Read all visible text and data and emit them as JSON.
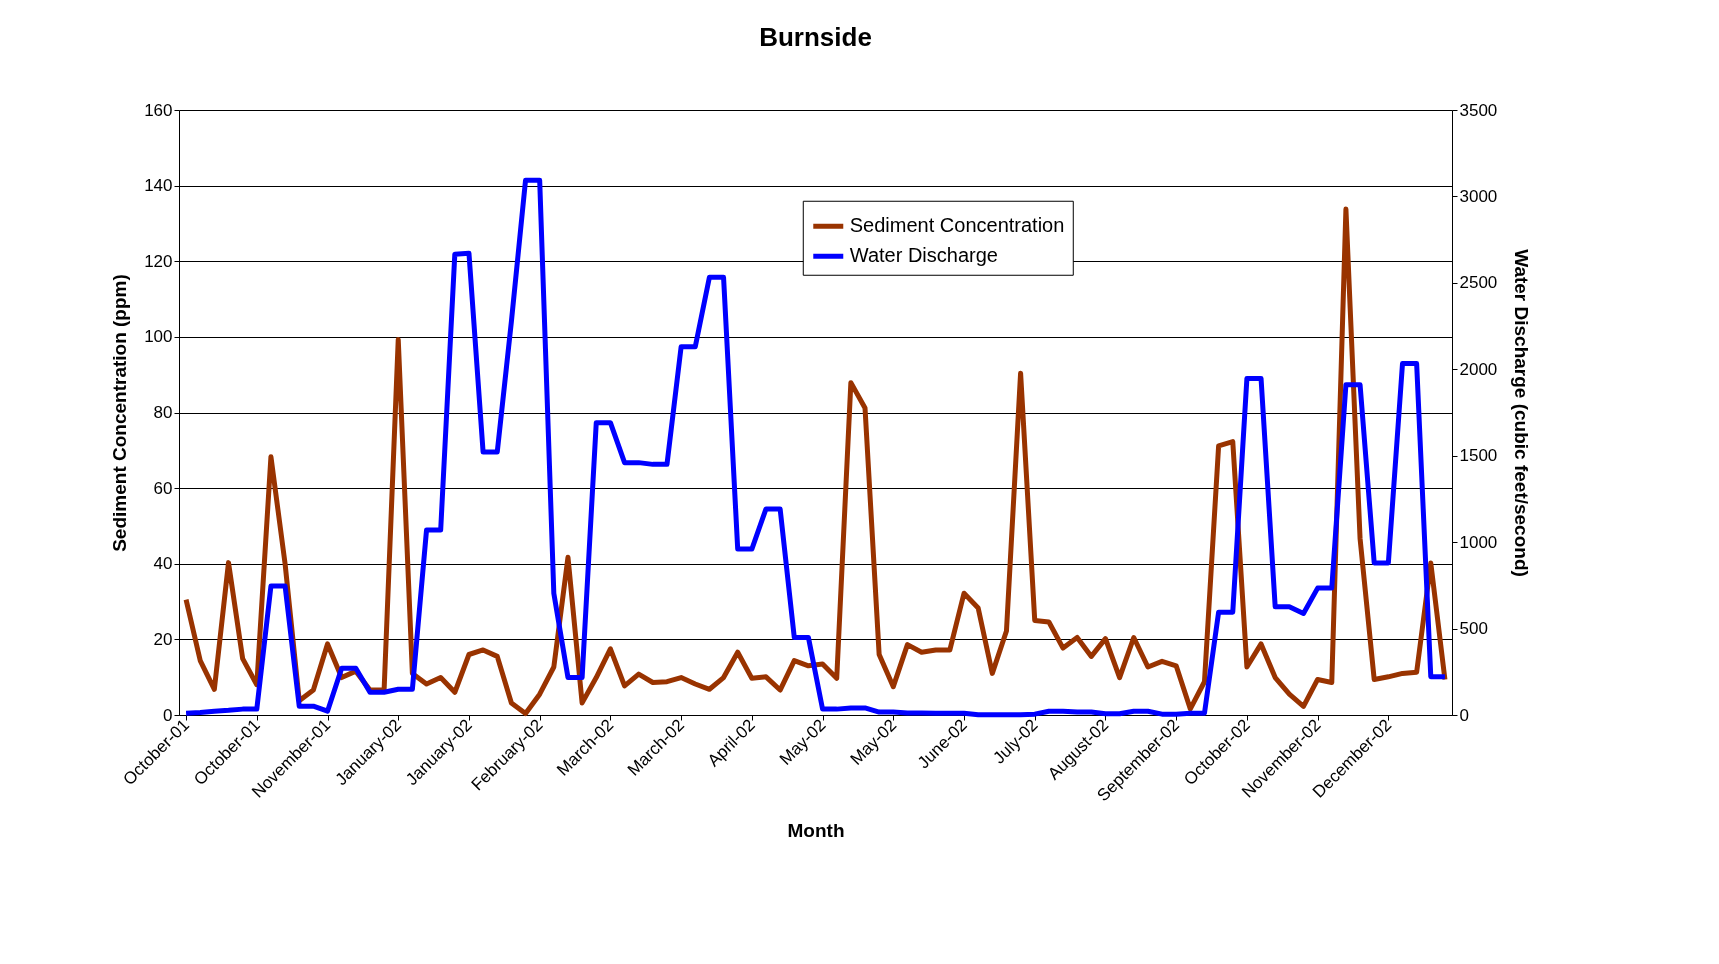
{
  "chart_data": {
    "type": "line",
    "title": "Burnside",
    "xlabel": "Month",
    "ylabel": "Sediment Concentration (ppm)",
    "y2label": "Water Discharge (cubic feet/second)",
    "categories": [
      "October-01",
      null,
      null,
      null,
      null,
      "October-01",
      null,
      null,
      null,
      null,
      "November-01",
      null,
      null,
      null,
      null,
      "January-02",
      null,
      null,
      null,
      null,
      "January-02",
      null,
      null,
      null,
      null,
      "February-02",
      null,
      null,
      null,
      null,
      "March-02",
      null,
      null,
      null,
      null,
      "March-02",
      null,
      null,
      null,
      null,
      "April-02",
      null,
      null,
      null,
      null,
      "May-02",
      null,
      null,
      null,
      null,
      "May-02",
      null,
      null,
      null,
      null,
      "June-02",
      null,
      null,
      null,
      null,
      "July-02",
      null,
      null,
      null,
      null,
      "August-02",
      null,
      null,
      null,
      null,
      "September-02",
      null,
      null,
      null,
      null,
      "October-02",
      null,
      null,
      null,
      null,
      "November-02",
      null,
      null,
      null,
      null,
      "December-02",
      null,
      null,
      null,
      null
    ],
    "series": [
      {
        "name": "Sediment Concentration",
        "color": "#993300",
        "values": [
          30.5,
          14.4,
          6.8,
          40.3,
          14.9,
          8,
          68.3,
          40,
          3.8,
          6.6,
          18.8,
          9.9,
          11.6,
          6.6,
          6.6,
          99.3,
          11,
          8.2,
          9.9,
          6,
          16,
          17.2,
          15.5,
          3.2,
          0.4,
          5.5,
          12.7,
          41.7,
          3.2,
          9.9,
          17.5,
          7.7,
          10.8,
          8.6,
          8.8,
          9.9,
          8.2,
          6.8,
          9.9,
          16.6,
          9.7,
          10.1,
          6.6,
          14.4,
          13,
          13.5,
          9.7,
          87.9,
          81.2,
          16,
          7.5,
          18.6,
          16.6,
          17.2,
          17.2,
          32.2,
          28.3,
          11,
          22.2,
          90.4,
          25,
          24.6,
          17.7,
          20.5,
          15.5,
          20.2,
          9.9,
          20.5,
          12.7,
          14.2,
          13,
          1.6,
          8.8,
          71.2,
          72.3,
          12.7,
          18.8,
          9.9,
          5.5,
          2.3,
          9.4,
          8.6,
          133.8,
          46.7,
          9.4,
          10.1,
          11,
          11.3,
          40.2,
          9.4
        ]
      },
      {
        "name": "Water Discharge",
        "color": "#0000ff",
        "axis": "y2",
        "values": [
          10,
          15,
          22,
          27,
          34,
          34,
          746,
          746,
          51,
          51,
          22,
          271,
          271,
          132,
          132,
          149,
          149,
          1070,
          1070,
          2666,
          2671,
          1521,
          1521,
          2276,
          3093,
          3093,
          704,
          217,
          217,
          1691,
          1691,
          1460,
          1460,
          1450,
          1450,
          2130,
          2130,
          2532,
          2532,
          960,
          960,
          1192,
          1192,
          448,
          448,
          34,
          34,
          41,
          41,
          17,
          17,
          12,
          12,
          10,
          10,
          10,
          2,
          2,
          2,
          2,
          5,
          22,
          22,
          17,
          17,
          7,
          7,
          22,
          22,
          5,
          5,
          10,
          10,
          595,
          595,
          1947,
          1947,
          626,
          626,
          587,
          734,
          734,
          1911,
          1911,
          880,
          880,
          2033,
          2033,
          222,
          222
        ]
      }
    ],
    "ylim": [
      0,
      160
    ],
    "yticks": [
      0,
      20,
      40,
      60,
      80,
      100,
      120,
      140,
      160
    ],
    "y2lim": [
      0,
      3500
    ],
    "y2ticks": [
      0,
      500,
      1000,
      1500,
      2000,
      2500,
      3000,
      3500
    ],
    "grid": "y",
    "legend": "top right",
    "marker": "none",
    "line_style": "solid"
  }
}
